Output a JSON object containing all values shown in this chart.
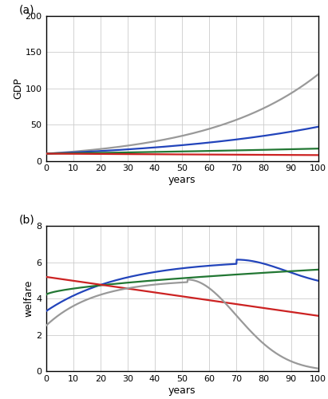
{
  "gdp_ylim": [
    0,
    200
  ],
  "gdp_yticks": [
    0,
    50,
    100,
    150,
    200
  ],
  "welfare_ylim": [
    0,
    8
  ],
  "welfare_yticks": [
    0,
    2,
    4,
    6,
    8
  ],
  "xticks": [
    0,
    10,
    20,
    30,
    40,
    50,
    60,
    70,
    80,
    90,
    100
  ],
  "colors": {
    "gray": "#999999",
    "blue": "#2244bb",
    "green": "#227733",
    "red": "#cc2222"
  },
  "linewidth": 1.6,
  "background_color": "#ffffff",
  "grid_color": "#cccccc"
}
